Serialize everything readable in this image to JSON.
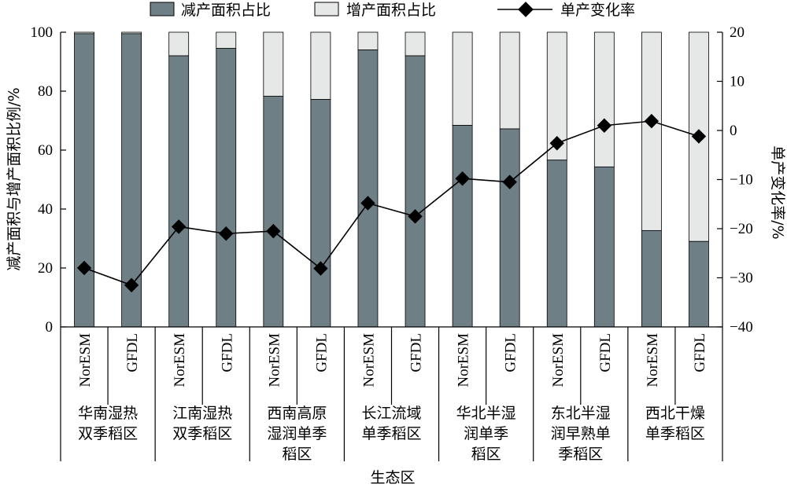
{
  "chart_data": {
    "type": "bar",
    "subtype": "stacked-bar-with-line",
    "legend": [
      {
        "key": "decrease",
        "label": "减产面积占比",
        "color": "#6f7f86"
      },
      {
        "key": "increase",
        "label": "增产面积占比",
        "color": "#e6e8e8"
      },
      {
        "key": "rate",
        "label": "单产变化率",
        "color": "#000000"
      }
    ],
    "categories": [
      {
        "model": "NorESM",
        "region": "华南湿热双季稻区"
      },
      {
        "model": "GFDL",
        "region": "华南湿热双季稻区"
      },
      {
        "model": "NorESM",
        "region": "江南湿热双季稻区"
      },
      {
        "model": "GFDL",
        "region": "江南湿热双季稻区"
      },
      {
        "model": "NorESM",
        "region": "西南高原湿润单季稻区"
      },
      {
        "model": "GFDL",
        "region": "西南高原湿润单季稻区"
      },
      {
        "model": "NorESM",
        "region": "长江流域单季稻区"
      },
      {
        "model": "GFDL",
        "region": "长江流域单季稻区"
      },
      {
        "model": "NorESM",
        "region": "华北半湿润单季稻区"
      },
      {
        "model": "GFDL",
        "region": "华北半湿润单季稻区"
      },
      {
        "model": "NorESM",
        "region": "东北半湿润早熟单季稻区"
      },
      {
        "model": "GFDL",
        "region": "东北半湿润早熟单季稻区"
      },
      {
        "model": "NorESM",
        "region": "西北干燥单季稻区"
      },
      {
        "model": "GFDL",
        "region": "西北干燥单季稻区"
      }
    ],
    "regions": [
      {
        "lines": [
          "华南湿热",
          "双季稻区"
        ]
      },
      {
        "lines": [
          "江南湿热",
          "双季稻区"
        ]
      },
      {
        "lines": [
          "西南高原",
          "湿润单季",
          "稻区"
        ]
      },
      {
        "lines": [
          "长江流域",
          "单季稻区"
        ]
      },
      {
        "lines": [
          "华北半湿",
          "润单季",
          "稻区"
        ]
      },
      {
        "lines": [
          "东北半湿",
          "润早熟单",
          "季稻区"
        ]
      },
      {
        "lines": [
          "西北干燥",
          "单季稻区"
        ]
      }
    ],
    "series": [
      {
        "name": "减产面积占比",
        "axis": "left",
        "values": [
          99.5,
          99.5,
          92,
          94.5,
          78.3,
          77.2,
          94,
          92,
          68.4,
          67.2,
          56.6,
          54.3,
          32.7,
          29
        ]
      },
      {
        "name": "增产面积占比",
        "axis": "left",
        "values": [
          0.5,
          0.5,
          8,
          5.5,
          21.7,
          22.8,
          6,
          8,
          31.6,
          32.8,
          43.4,
          45.7,
          67.3,
          71
        ]
      },
      {
        "name": "单产变化率",
        "axis": "right",
        "values": [
          -28,
          -31.5,
          -19.6,
          -21,
          -20.5,
          -28.1,
          -14.8,
          -17.5,
          -9.8,
          -10.5,
          -2.6,
          1,
          1.9,
          -1.2
        ]
      }
    ],
    "y_left": {
      "label": "减产面积与增产面积比例/%",
      "range": [
        0,
        100
      ],
      "ticks": [
        "0",
        "20",
        "40",
        "60",
        "80",
        "100"
      ]
    },
    "y_right": {
      "label": "单产变化率/%",
      "range": [
        -40,
        20
      ],
      "ticks": [
        "−40",
        "−30",
        "−20",
        "−10",
        "0",
        "10",
        "20"
      ]
    },
    "xlabel": "生态区",
    "legend_position": "top",
    "grid": false
  }
}
